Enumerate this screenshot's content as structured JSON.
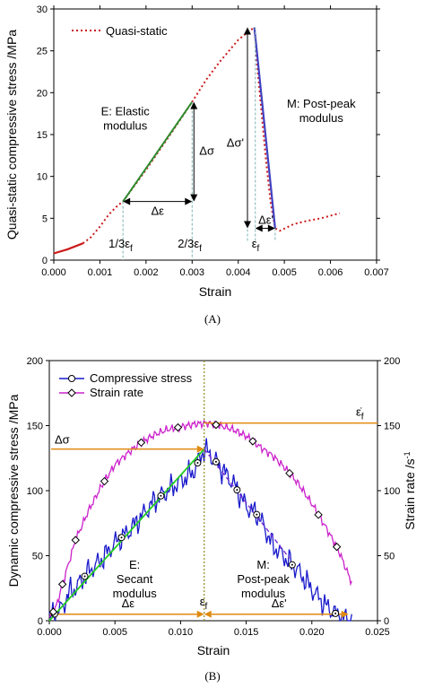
{
  "chart_data": [
    {
      "type": "line",
      "caption": "(A)",
      "xlabel": "Strain",
      "ylabel": "Quasi-static compressive stress /MPa",
      "xlim": [
        0,
        0.007
      ],
      "ylim": [
        0,
        30
      ],
      "xticks": [
        "0.000",
        "0.001",
        "0.002",
        "0.003",
        "0.004",
        "0.005",
        "0.006",
        "0.007"
      ],
      "yticks": [
        "0",
        "5",
        "10",
        "15",
        "20",
        "25",
        "30"
      ],
      "legend": {
        "position": "top-left",
        "entries": [
          "Quasi-static"
        ]
      },
      "colors": {
        "curve": "#cc1a1a",
        "elastic": "#2e8b2e",
        "postpeak": "#4040c0",
        "guide": "#7fb3b3"
      },
      "series": [
        {
          "name": "Quasi-static",
          "x": [
            0.0,
            0.0003,
            0.00063,
            0.0008,
            0.001,
            0.0012,
            0.0014,
            0.0015,
            0.002,
            0.0025,
            0.003,
            0.0033,
            0.0036,
            0.0038,
            0.004,
            0.0042,
            0.00435,
            0.0044,
            0.0045,
            0.0046,
            0.0047,
            0.0048,
            0.0049,
            0.0052,
            0.0055,
            0.0058,
            0.0062
          ],
          "y": [
            0.8,
            1.3,
            2.0,
            2.7,
            4.0,
            5.5,
            6.6,
            7.0,
            10.8,
            14.8,
            18.9,
            21.5,
            23.7,
            25.0,
            26.3,
            27.2,
            27.8,
            24.0,
            18.0,
            12.0,
            7.0,
            3.8,
            3.5,
            4.3,
            4.7,
            5.0,
            5.6
          ]
        }
      ],
      "annotations": {
        "elastic": "E: Elastic\nmodulus",
        "postpeak": "M: Post-peak\nmodulus",
        "d_sigma": "Δσ",
        "d_sigma_p": "Δσ'",
        "d_eps": "Δε",
        "d_eps_p": "Δε'",
        "one_third": "1/3ε",
        "two_third": "2/3ε",
        "eps_f": "ε",
        "sub_f": "f"
      },
      "elastic_line": {
        "x": [
          0.0015,
          0.003
        ],
        "y": [
          7.0,
          18.9
        ]
      },
      "postpeak_line": {
        "x": [
          0.00435,
          0.0048
        ],
        "y": [
          27.8,
          3.8
        ]
      }
    },
    {
      "type": "line",
      "caption": "(B)",
      "xlabel": "Strain",
      "ylabel": "Dynamic compressive stress /MPa",
      "ylabel_right": "Strain rate /s",
      "ylabel_right_sup": "-1",
      "xlim": [
        0,
        0.025
      ],
      "ylim": [
        0,
        200
      ],
      "ylim_right": [
        0,
        200
      ],
      "xticks": [
        "0.000",
        "0.005",
        "0.010",
        "0.015",
        "0.020",
        "0.025"
      ],
      "yticks": [
        "0",
        "50",
        "100",
        "150",
        "200"
      ],
      "legend": {
        "position": "top-left",
        "entries": [
          "Compressive stress",
          "Strain rate"
        ]
      },
      "colors": {
        "stress": "#1a1acc",
        "rate": "#cc22cc",
        "secant": "#22cc22",
        "postpeak": "#7a2fd0",
        "arrows": "#e08a10",
        "eps_line": "#8a8a20"
      },
      "series": [
        {
          "name": "Compressive stress",
          "x": [
            0.0,
            0.0005,
            0.001,
            0.0015,
            0.002,
            0.003,
            0.004,
            0.005,
            0.006,
            0.007,
            0.008,
            0.009,
            0.01,
            0.011,
            0.0118,
            0.0125,
            0.013,
            0.014,
            0.015,
            0.016,
            0.017,
            0.018,
            0.019,
            0.02,
            0.021,
            0.022,
            0.0225,
            0.023
          ],
          "y": [
            2,
            6,
            10,
            22,
            25,
            38,
            47,
            60,
            68,
            80,
            92,
            100,
            107,
            115,
            132,
            125,
            118,
            106,
            88,
            80,
            58,
            48,
            38,
            24,
            12,
            4,
            2,
            1
          ]
        },
        {
          "name": "Strain rate",
          "x": [
            0.0,
            0.0005,
            0.001,
            0.0015,
            0.002,
            0.003,
            0.004,
            0.005,
            0.006,
            0.007,
            0.008,
            0.009,
            0.01,
            0.011,
            0.012,
            0.013,
            0.014,
            0.015,
            0.016,
            0.017,
            0.018,
            0.019,
            0.02,
            0.021,
            0.022,
            0.023
          ],
          "y": [
            2,
            10,
            28,
            45,
            62,
            85,
            104,
            120,
            129,
            137,
            143,
            147,
            149,
            151,
            152,
            150,
            147,
            142,
            134,
            127,
            117,
            105,
            90,
            73,
            55,
            30
          ]
        }
      ],
      "stress_markers_x": [
        0.0004,
        0.0027,
        0.0055,
        0.0085,
        0.0113,
        0.0127,
        0.0143,
        0.0158,
        0.0185,
        0.0218
      ],
      "rate_markers_x": [
        0.0003,
        0.001,
        0.002,
        0.0042,
        0.007,
        0.0098,
        0.0127,
        0.0155,
        0.0183,
        0.0205,
        0.0219
      ],
      "annotations": {
        "secant": "E:\nSecant\nmodulus",
        "postpeak": "M:\nPost-peak\nmodulus",
        "d_sigma": "Δσ",
        "d_eps": "Δε",
        "d_eps_p": "Δε'",
        "eps_f": "ε",
        "sub_f": "f",
        "eps_dot_f": "ε̇"
      },
      "eps_f_value": 0.0118,
      "peak_stress": 132,
      "peak_rate": 152
    }
  ]
}
